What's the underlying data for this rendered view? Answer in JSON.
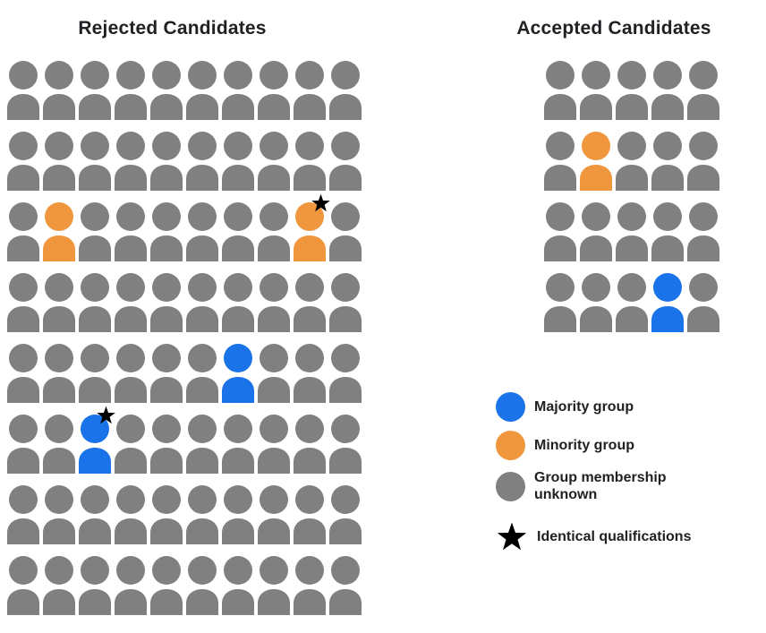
{
  "colors": {
    "majority": "#1a73e8",
    "minority": "#f0973e",
    "unknown": "#808080",
    "star": "#000000",
    "text": "#202124"
  },
  "rejected": {
    "title": "Rejected Candidates",
    "rows": 8,
    "cols": 10,
    "overrides": [
      {
        "row": 3,
        "col": 2,
        "group": "minority",
        "star": false
      },
      {
        "row": 3,
        "col": 9,
        "group": "minority",
        "star": true
      },
      {
        "row": 5,
        "col": 7,
        "group": "majority",
        "star": false
      },
      {
        "row": 6,
        "col": 3,
        "group": "majority",
        "star": true
      }
    ]
  },
  "accepted": {
    "title": "Accepted Candidates",
    "rows": 4,
    "cols": 5,
    "overrides": [
      {
        "row": 2,
        "col": 2,
        "group": "minority",
        "star": false
      },
      {
        "row": 4,
        "col": 4,
        "group": "majority",
        "star": false
      }
    ]
  },
  "legend": {
    "items": [
      {
        "icon": "circle",
        "group": "majority",
        "label": "Majority group"
      },
      {
        "icon": "circle",
        "group": "minority",
        "label": "Minority group"
      },
      {
        "icon": "circle",
        "group": "unknown",
        "label": "Group membership unknown"
      },
      {
        "icon": "star",
        "group": "star",
        "label": "Identical qualifications"
      }
    ]
  }
}
